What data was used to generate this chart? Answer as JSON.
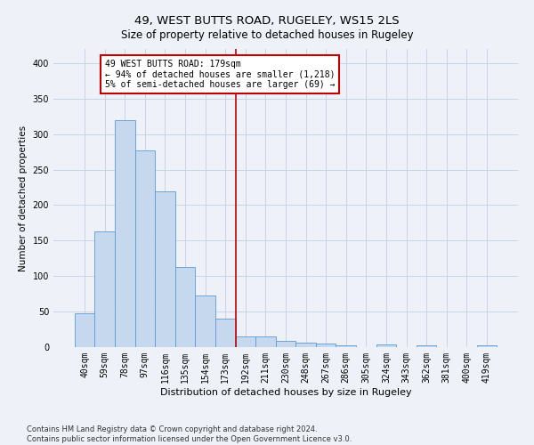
{
  "title1": "49, WEST BUTTS ROAD, RUGELEY, WS15 2LS",
  "title2": "Size of property relative to detached houses in Rugeley",
  "xlabel": "Distribution of detached houses by size in Rugeley",
  "ylabel": "Number of detached properties",
  "footnote": "Contains HM Land Registry data © Crown copyright and database right 2024.\nContains public sector information licensed under the Open Government Licence v3.0.",
  "categories": [
    "40sqm",
    "59sqm",
    "78sqm",
    "97sqm",
    "116sqm",
    "135sqm",
    "154sqm",
    "173sqm",
    "192sqm",
    "211sqm",
    "230sqm",
    "248sqm",
    "267sqm",
    "286sqm",
    "305sqm",
    "324sqm",
    "343sqm",
    "362sqm",
    "381sqm",
    "400sqm",
    "419sqm"
  ],
  "values": [
    48,
    163,
    320,
    277,
    220,
    113,
    73,
    40,
    15,
    15,
    9,
    6,
    5,
    3,
    0,
    4,
    0,
    3,
    0,
    0,
    3
  ],
  "bar_color": "#c5d8ed",
  "bar_edge_color": "#5b9bd5",
  "vline_x_index": 7.5,
  "vline_color": "#c00000",
  "annotation_text": "49 WEST BUTTS ROAD: 179sqm\n← 94% of detached houses are smaller (1,218)\n5% of semi-detached houses are larger (69) →",
  "annotation_box_color": "#c00000",
  "annotation_text_color": "#000000",
  "ylim": [
    0,
    420
  ],
  "yticks": [
    0,
    50,
    100,
    150,
    200,
    250,
    300,
    350,
    400
  ],
  "bg_color": "#eef2f8",
  "plot_bg_color": "#eef2f8",
  "grid_color": "#c8d4e8",
  "title1_fontsize": 9.5,
  "title2_fontsize": 8.5,
  "xlabel_fontsize": 8,
  "ylabel_fontsize": 7.5,
  "tick_fontsize": 7,
  "annot_fontsize": 7,
  "footnote_fontsize": 6
}
